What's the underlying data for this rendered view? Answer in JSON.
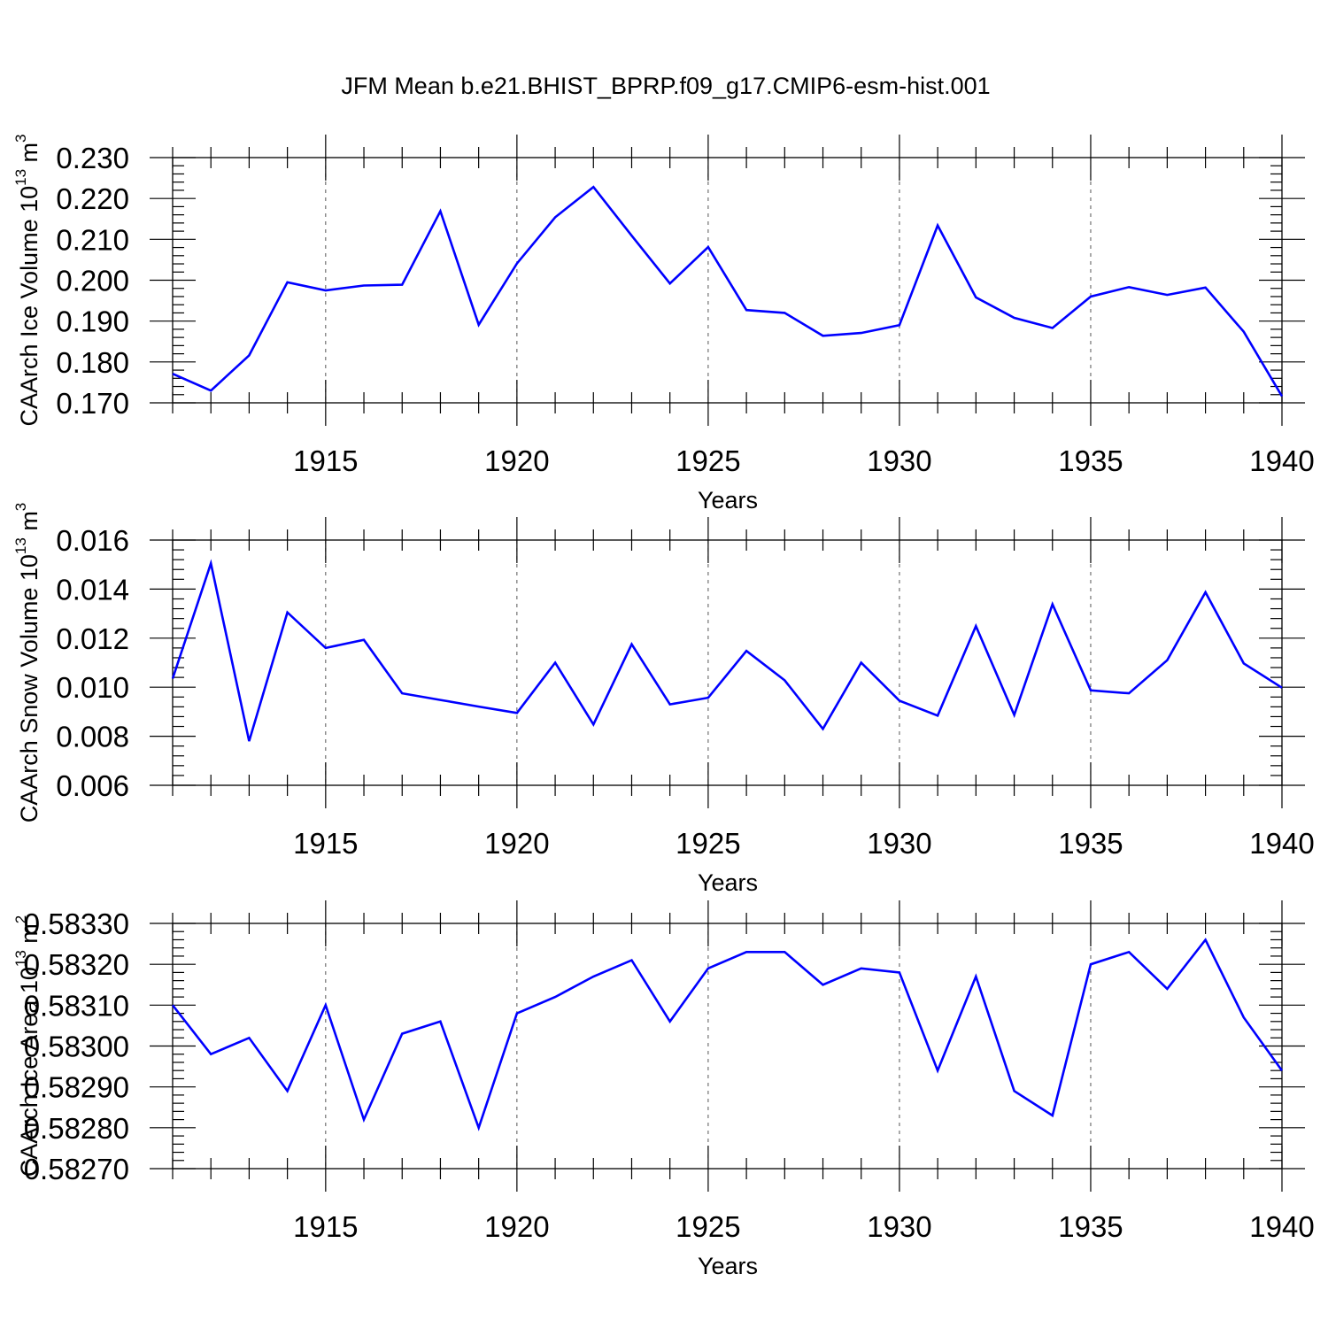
{
  "title": "JFM Mean b.e21.BHIST_BPRP.f09_g17.CMIP6-esm-hist.001",
  "colors": {
    "line": "#0000ff",
    "axes": "#000000",
    "grid": "#555555"
  },
  "chart_data": [
    {
      "type": "line",
      "ylabel_main": "CAArch Ice Volume 10",
      "ylabel_exp1": "13",
      "ylabel_unit": " m",
      "ylabel_exp2": "3",
      "xlabel": "Years",
      "xlim": [
        1911,
        1940
      ],
      "xticks": [
        1915,
        1920,
        1925,
        1930,
        1935,
        1940
      ],
      "xtick_labels": [
        "1915",
        "1920",
        "1925",
        "1930",
        "1935",
        "1940"
      ],
      "ylim": [
        0.17,
        0.23
      ],
      "yticks": [
        0.17,
        0.18,
        0.19,
        0.2,
        0.21,
        0.22,
        0.23
      ],
      "ytick_labels": [
        "0.170",
        "0.180",
        "0.190",
        "0.200",
        "0.210",
        "0.220",
        "0.230"
      ],
      "grid": "vertical dashed at major x ticks",
      "series": [
        {
          "name": "CAArch Ice Volume",
          "x": [
            1911,
            1912,
            1913,
            1914,
            1915,
            1916,
            1917,
            1918,
            1919,
            1920,
            1921,
            1922,
            1923,
            1924,
            1925,
            1926,
            1927,
            1928,
            1929,
            1930,
            1931,
            1932,
            1933,
            1934,
            1935,
            1936,
            1937,
            1938,
            1939,
            1940
          ],
          "values": [
            0.1771,
            0.173,
            0.1816,
            0.1995,
            0.1975,
            0.1987,
            0.1989,
            0.2169,
            0.1891,
            0.2041,
            0.2154,
            0.2228,
            0.2109,
            0.1992,
            0.2081,
            0.1927,
            0.192,
            0.1864,
            0.1871,
            0.189,
            0.2134,
            0.1958,
            0.1908,
            0.1883,
            0.196,
            0.1983,
            0.1964,
            0.1982,
            0.1874,
            0.1716
          ]
        }
      ]
    },
    {
      "type": "line",
      "ylabel_main": "CAArch Snow Volume 10",
      "ylabel_exp1": "13",
      "ylabel_unit": " m",
      "ylabel_exp2": "3",
      "xlabel": "Years",
      "xlim": [
        1911,
        1940
      ],
      "xticks": [
        1915,
        1920,
        1925,
        1930,
        1935,
        1940
      ],
      "xtick_labels": [
        "1915",
        "1920",
        "1925",
        "1930",
        "1935",
        "1940"
      ],
      "ylim": [
        0.006,
        0.016
      ],
      "yticks": [
        0.006,
        0.008,
        0.01,
        0.012,
        0.014,
        0.016
      ],
      "ytick_labels": [
        "0.006",
        "0.008",
        "0.010",
        "0.012",
        "0.014",
        "0.016"
      ],
      "grid": "vertical dashed at major x ticks",
      "series": [
        {
          "name": "CAArch Snow Volume",
          "x": [
            1911,
            1912,
            1913,
            1914,
            1915,
            1916,
            1917,
            1918,
            1919,
            1920,
            1921,
            1922,
            1923,
            1924,
            1925,
            1926,
            1927,
            1928,
            1929,
            1930,
            1931,
            1932,
            1933,
            1934,
            1935,
            1936,
            1937,
            1938,
            1939,
            1940
          ],
          "values": [
            0.01035,
            0.01505,
            0.0078,
            0.01305,
            0.0116,
            0.01193,
            0.00975,
            0.00948,
            0.00921,
            0.00895,
            0.011,
            0.00848,
            0.01175,
            0.0093,
            0.00957,
            0.01148,
            0.01028,
            0.0083,
            0.011,
            0.00945,
            0.00884,
            0.01249,
            0.00887,
            0.01338,
            0.00987,
            0.00975,
            0.0111,
            0.01387,
            0.01097,
            0.00998
          ]
        }
      ]
    },
    {
      "type": "line",
      "ylabel_main": "CAArch Ice Area 10",
      "ylabel_exp1": "13",
      "ylabel_unit": " m",
      "ylabel_exp2": "2",
      "xlabel": "Years",
      "xlim": [
        1911,
        1940
      ],
      "xticks": [
        1915,
        1920,
        1925,
        1930,
        1935,
        1940
      ],
      "xtick_labels": [
        "1915",
        "1920",
        "1925",
        "1930",
        "1935",
        "1940"
      ],
      "ylim": [
        0.5827,
        0.5833
      ],
      "yticks": [
        0.5827,
        0.5828,
        0.5829,
        0.583,
        0.5831,
        0.5832,
        0.5833
      ],
      "ytick_labels": [
        "0.58270",
        "0.58280",
        "0.58290",
        "0.58300",
        "0.58310",
        "0.58320",
        "0.58330"
      ],
      "grid": "vertical dashed at major x ticks",
      "series": [
        {
          "name": "CAArch Ice Area",
          "x": [
            1911,
            1912,
            1913,
            1914,
            1915,
            1916,
            1917,
            1918,
            1919,
            1920,
            1921,
            1922,
            1923,
            1924,
            1925,
            1926,
            1927,
            1928,
            1929,
            1930,
            1931,
            1932,
            1933,
            1934,
            1935,
            1936,
            1937,
            1938,
            1939,
            1940
          ],
          "values": [
            0.5831,
            0.58298,
            0.58302,
            0.58289,
            0.5831,
            0.58282,
            0.58303,
            0.58306,
            0.5828,
            0.58308,
            0.58312,
            0.58317,
            0.58321,
            0.58306,
            0.58319,
            0.58323,
            0.58323,
            0.58315,
            0.58319,
            0.58318,
            0.58294,
            0.58317,
            0.58289,
            0.58283,
            0.5832,
            0.58323,
            0.58314,
            0.58326,
            0.58307,
            0.58294
          ]
        }
      ]
    }
  ]
}
